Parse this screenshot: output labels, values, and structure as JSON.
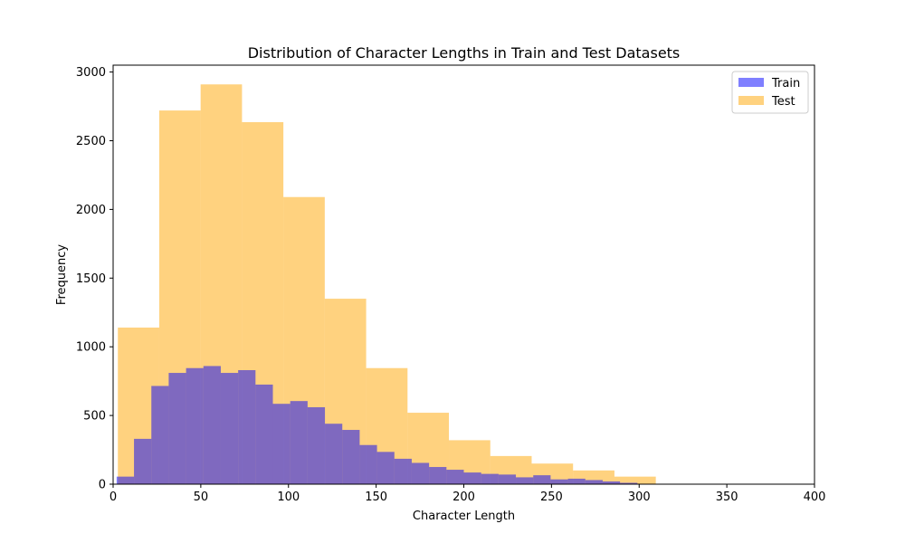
{
  "chart_data": {
    "type": "bar",
    "title": "Distribution of Character Lengths in Train and Test Datasets",
    "xlabel": "Character Length",
    "ylabel": "Frequency",
    "xlim": [
      0,
      400
    ],
    "ylim": [
      0,
      3050
    ],
    "xticks": [
      0,
      50,
      100,
      150,
      200,
      250,
      300,
      350,
      400
    ],
    "yticks": [
      0,
      500,
      1000,
      1500,
      2000,
      2500,
      3000
    ],
    "grid": false,
    "legend_position": "top-right",
    "series": [
      {
        "name": "Test",
        "color": "#ffa500",
        "opacity": 0.5,
        "bin_edges": [
          2.7,
          26.3,
          49.9,
          73.5,
          97.1,
          120.7,
          144.3,
          167.9,
          191.5,
          215.1,
          238.7,
          262.3,
          285.9,
          309.5,
          333.1,
          356.7,
          380.3,
          403.9
        ],
        "values": [
          1140,
          2720,
          2910,
          2635,
          2090,
          1350,
          845,
          520,
          320,
          205,
          150,
          100,
          55,
          0,
          0,
          0,
          0
        ]
      },
      {
        "name": "Train",
        "color": "#0000ff",
        "opacity": 0.5,
        "bin_edges": [
          2,
          11.9,
          21.8,
          31.7,
          41.6,
          51.5,
          61.4,
          71.3,
          81.2,
          91.1,
          101,
          110.9,
          120.8,
          130.7,
          140.6,
          150.5,
          160.4,
          170.3,
          180.2,
          190.1,
          200,
          209.9,
          219.8,
          229.7,
          239.6,
          249.5,
          259.4,
          269.3,
          279.2,
          289.1,
          299
        ],
        "values": [
          55,
          330,
          715,
          810,
          845,
          860,
          810,
          830,
          725,
          585,
          605,
          560,
          440,
          395,
          285,
          235,
          185,
          155,
          125,
          105,
          85,
          75,
          70,
          50,
          65,
          35,
          40,
          30,
          20,
          10
        ]
      }
    ]
  }
}
